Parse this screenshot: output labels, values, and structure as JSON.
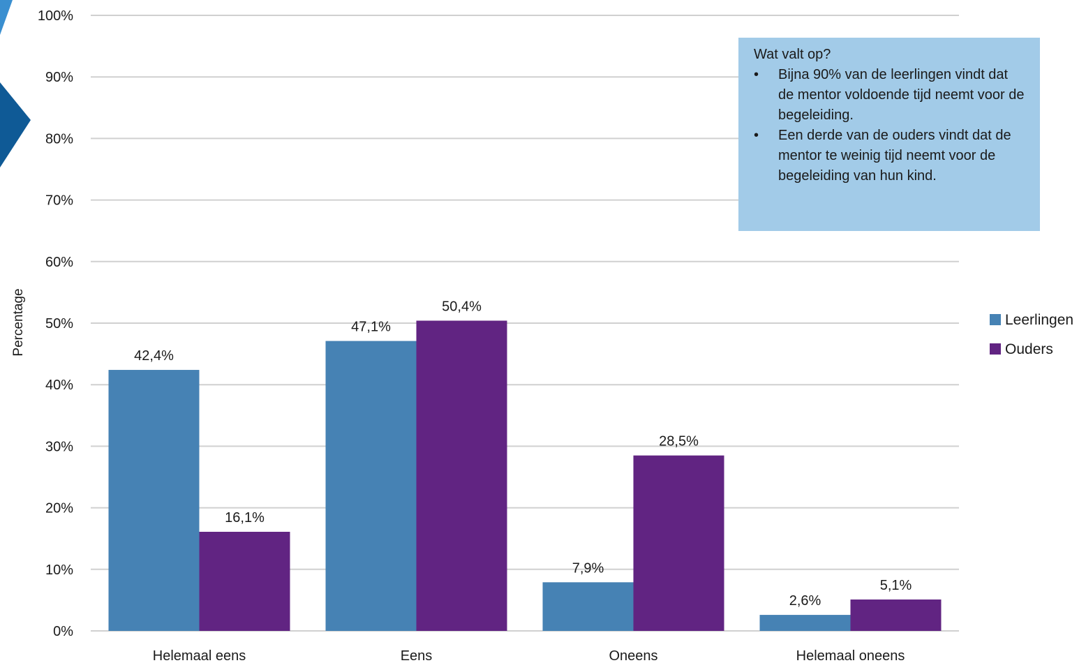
{
  "colors": {
    "leerlingen": "#4682b4",
    "ouders": "#612482",
    "grid": "#d0d0d0",
    "note_background": "#a2cbe8",
    "decoration_light": "#3a8fd0",
    "decoration_dark": "#0f5a96"
  },
  "chart_data": {
    "type": "bar",
    "title": "",
    "xlabel": "",
    "ylabel": "Percentage",
    "ylim": [
      0,
      100
    ],
    "yticks": [
      "0%",
      "10%",
      "20%",
      "30%",
      "40%",
      "50%",
      "60%",
      "70%",
      "80%",
      "90%",
      "100%"
    ],
    "grid": true,
    "legend_position": "right",
    "categories": [
      "Helemaal eens",
      "Eens",
      "Oneens",
      "Helemaal oneens"
    ],
    "series": [
      {
        "name": "Leerlingen",
        "values": [
          42.4,
          47.1,
          7.9,
          2.6
        ],
        "labels": [
          "42,4%",
          "47,1%",
          "7,9%",
          "2,6%"
        ]
      },
      {
        "name": "Ouders",
        "values": [
          16.1,
          50.4,
          28.5,
          5.1
        ],
        "labels": [
          "16,1%",
          "50,4%",
          "28,5%",
          "5,1%"
        ]
      }
    ]
  },
  "note": {
    "title": "Wat valt op?",
    "bullet_symbol": "•",
    "bullets": [
      "Bijna 90% van de leerlingen vindt dat de mentor voldoende tijd neemt voor de begeleiding.",
      "Een derde van de ouders vindt dat de mentor te weinig tijd neemt voor de begeleiding van hun kind."
    ]
  }
}
